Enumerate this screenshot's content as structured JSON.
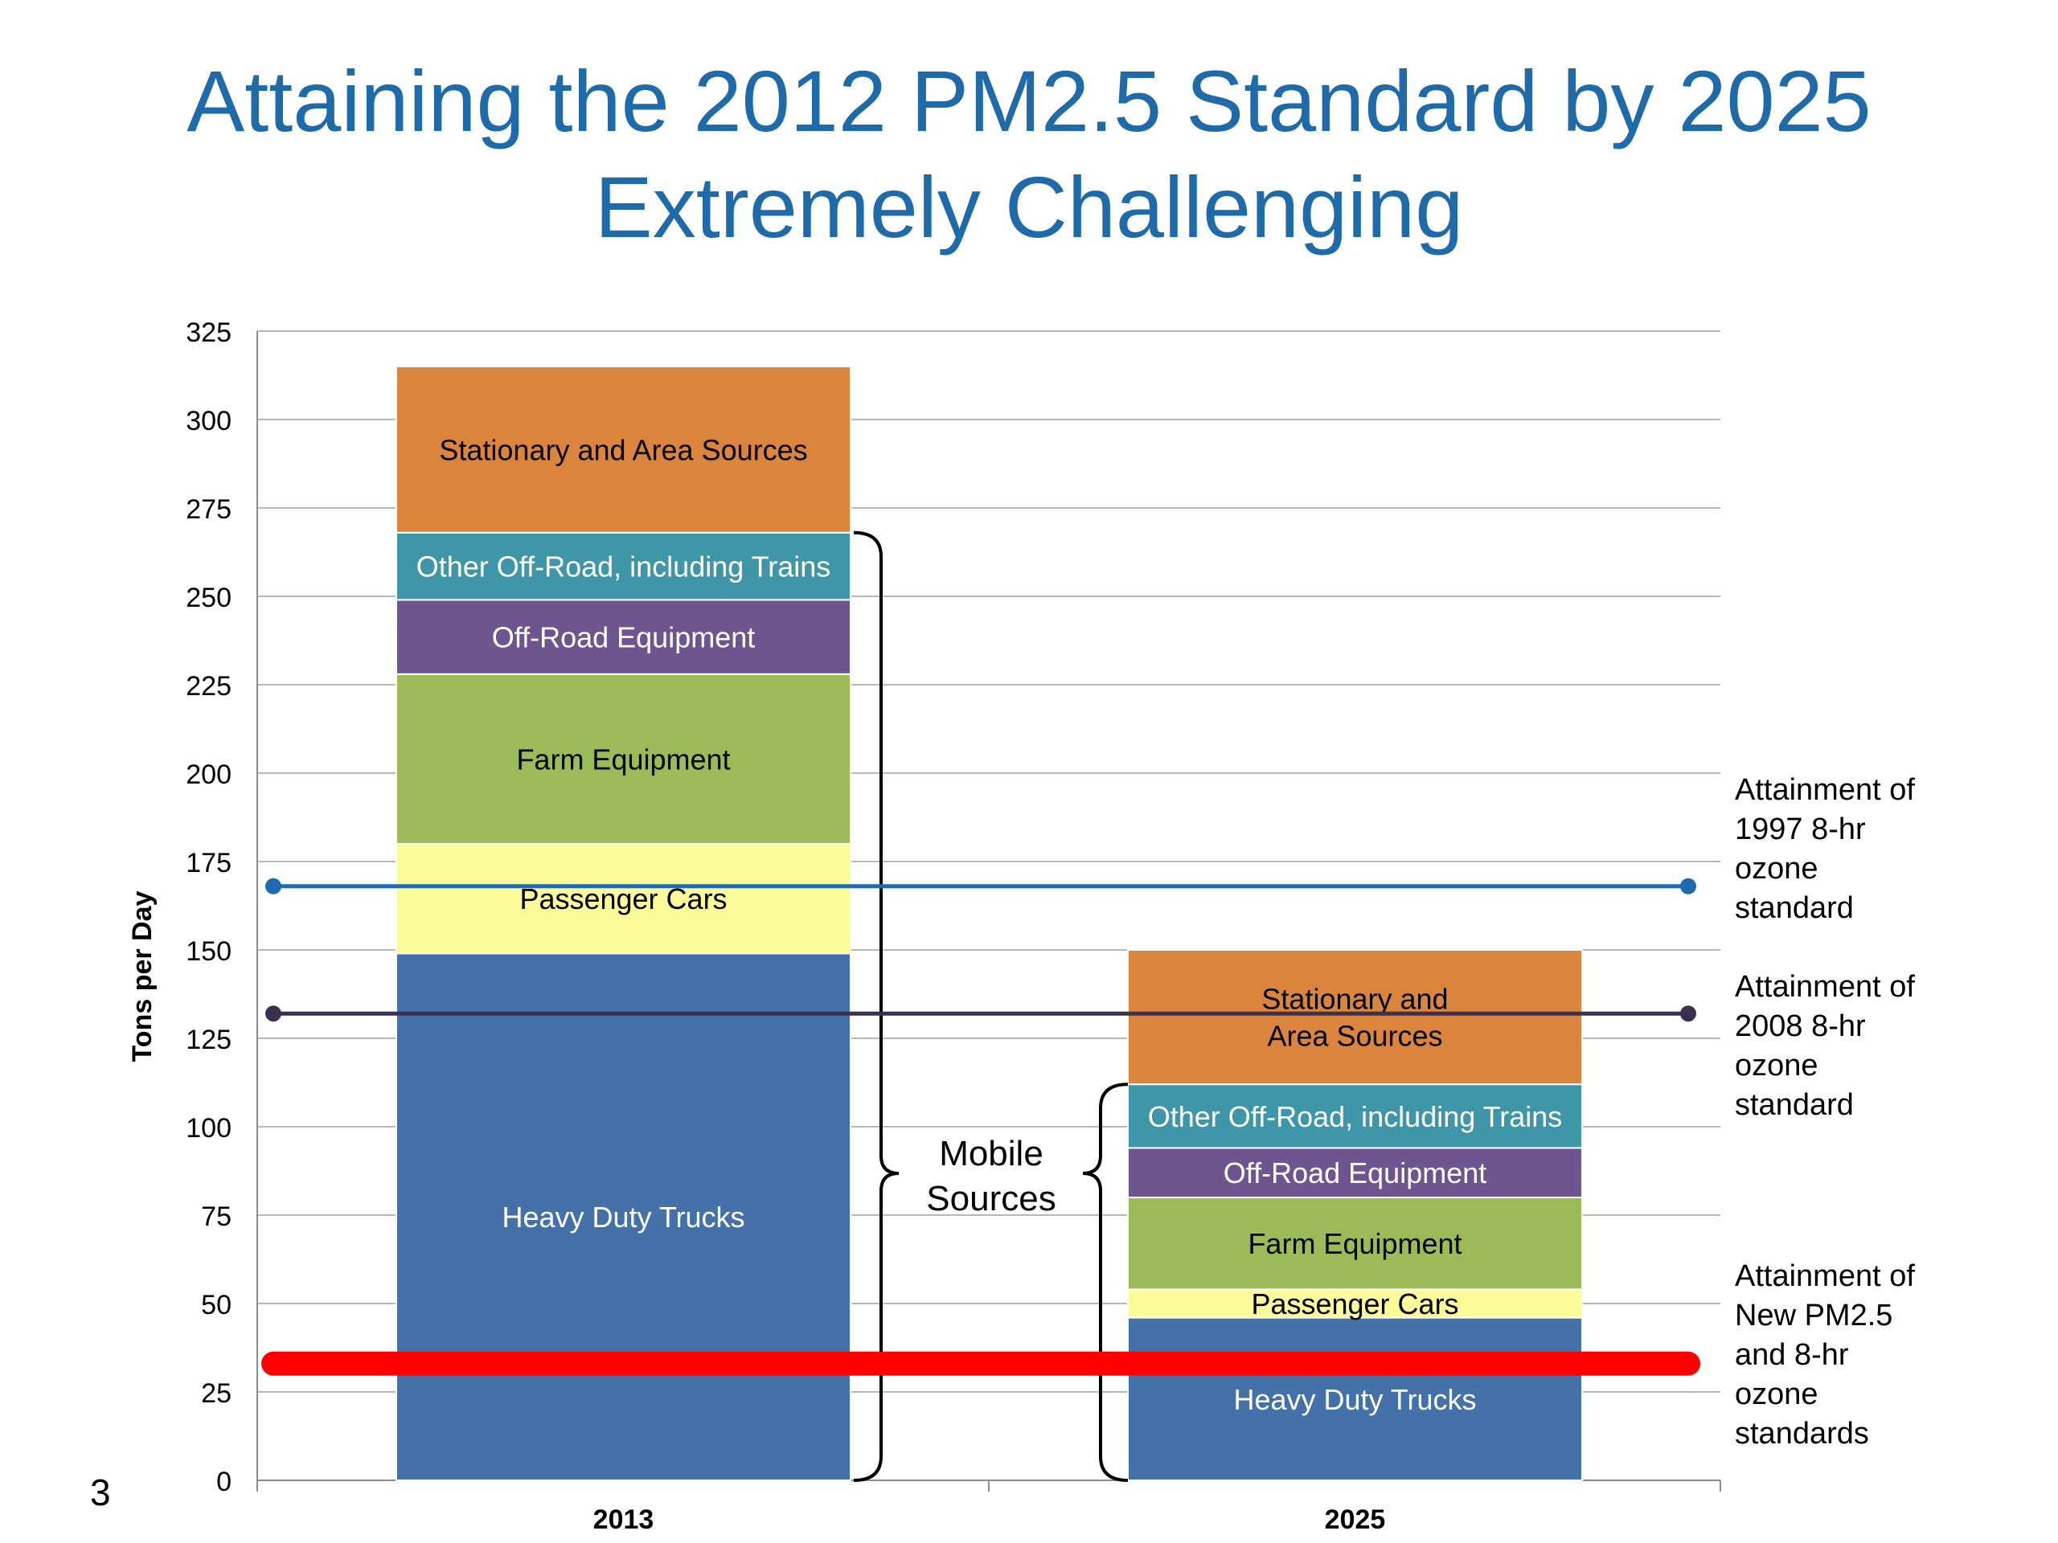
{
  "slide": {
    "title_line1": "Attaining the 2012 PM2.5 Standard by 2025",
    "title_line2": "Extremely Challenging",
    "page_number": "3"
  },
  "chart_data": {
    "type": "bar",
    "stacked": true,
    "categories": [
      "2013",
      "2025"
    ],
    "ylabel": "Tons per Day",
    "ylim": [
      0,
      325
    ],
    "yticks": [
      0,
      25,
      50,
      75,
      100,
      125,
      150,
      175,
      200,
      225,
      250,
      275,
      300,
      325
    ],
    "grid": true,
    "series": [
      {
        "name": "Heavy Duty Trucks",
        "labels": [
          "Heavy Duty Trucks",
          "Heavy Duty Trucks"
        ],
        "values": [
          149,
          46
        ],
        "color": "#4472a8",
        "text_color": "#ffffff"
      },
      {
        "name": "Passenger Cars",
        "labels": [
          "Passenger Cars",
          "Passenger Cars"
        ],
        "values": [
          31,
          8
        ],
        "color": "#fbfb9a",
        "text_color": "#000000"
      },
      {
        "name": "Farm Equipment",
        "labels": [
          "Farm Equipment",
          "Farm Equipment"
        ],
        "values": [
          48,
          26
        ],
        "color": "#9bbb59",
        "text_color": "#000000"
      },
      {
        "name": "Off-Road Equipment",
        "labels": [
          "Off-Road Equipment",
          "Off-Road Equipment"
        ],
        "values": [
          21,
          14
        ],
        "color": "#6f5590",
        "text_color": "#ffffff"
      },
      {
        "name": "Other Off-Road, including Trains",
        "labels": [
          "Other Off-Road, including  Trains",
          "Other Off-Road, including  Trains"
        ],
        "values": [
          19,
          18
        ],
        "color": "#3f96a8",
        "text_color": "#ffffff"
      },
      {
        "name": "Stationary and Area Sources",
        "labels": [
          "Stationary and Area Sources",
          "Stationary and\nArea Sources"
        ],
        "values": [
          47,
          38
        ],
        "color": "#db843d",
        "text_color": "#000000"
      }
    ],
    "reference_lines": [
      {
        "value": 168,
        "label_lines": [
          "Attainment of",
          "1997 8-hr",
          "ozone",
          "standard"
        ],
        "color": "#1f6ab0",
        "style": "thin-dots"
      },
      {
        "value": 132,
        "label_lines": [
          "Attainment of",
          "2008 8-hr",
          "ozone",
          "standard"
        ],
        "color": "#3c3050",
        "style": "thin-dots"
      },
      {
        "value": 33,
        "label_lines": [
          "Attainment of",
          "New PM2.5",
          "and 8-hr",
          "ozone",
          "standards"
        ],
        "color": "#ff0000",
        "style": "thick"
      }
    ],
    "annotations": [
      {
        "text_lines": [
          "Mobile",
          "Sources"
        ],
        "brackets": [
          "2013 mobile sources",
          "2025 mobile sources"
        ]
      }
    ]
  }
}
